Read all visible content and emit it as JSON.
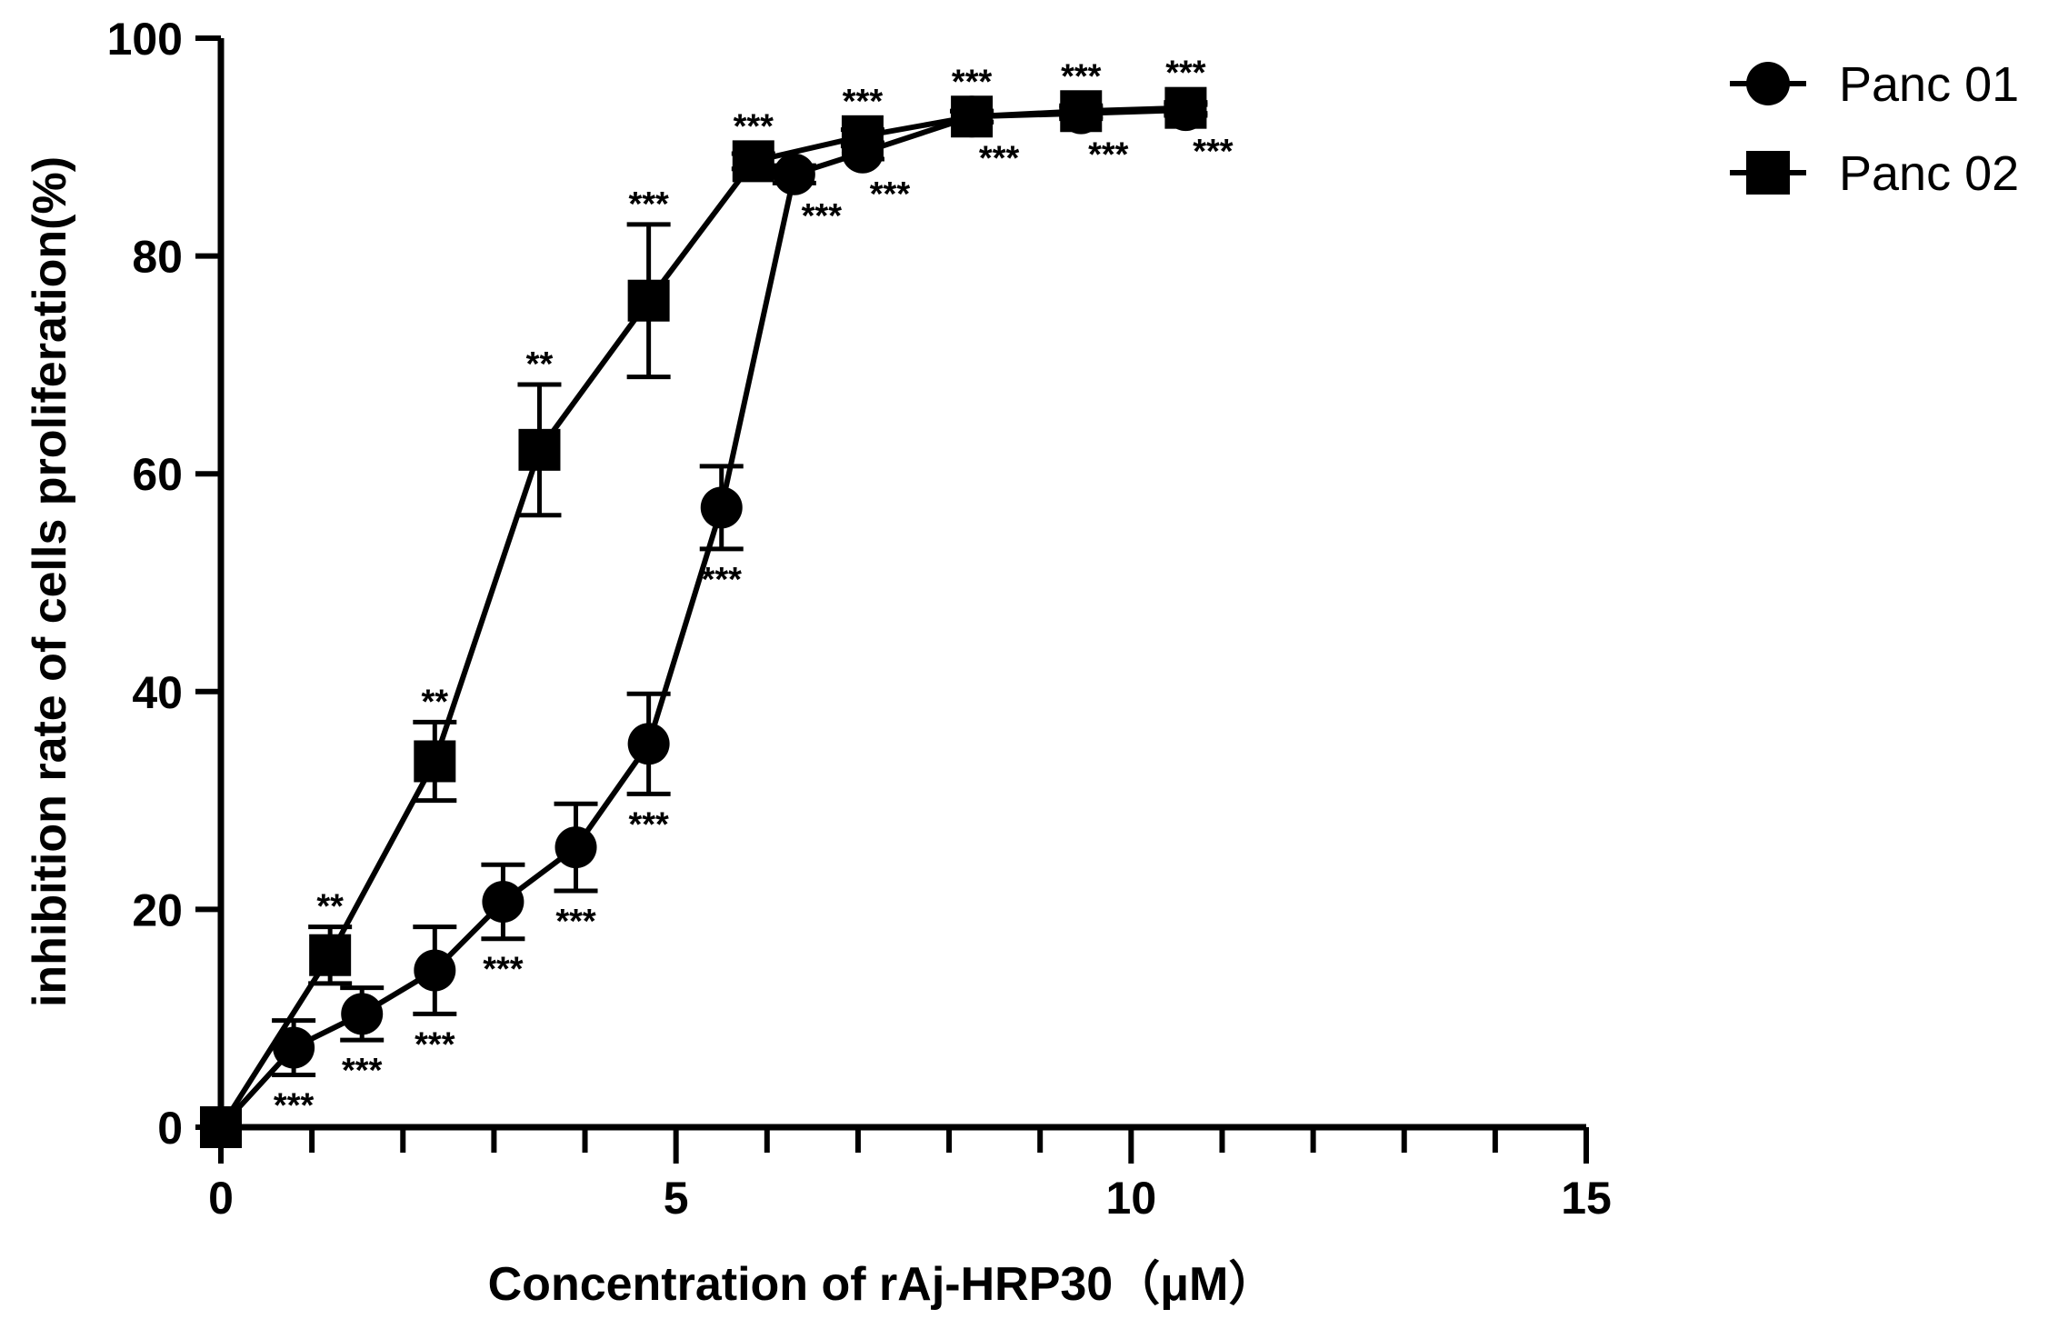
{
  "chart_data": {
    "type": "line",
    "title": "",
    "xlabel": "Concentration of rAj-HRP30（μM）",
    "ylabel": "inhibition rate of cells proliferation(%)",
    "xlim": [
      0,
      15
    ],
    "ylim": [
      0,
      100
    ],
    "x_ticks": [
      0,
      5,
      10,
      15
    ],
    "x_tick_labels": [
      "0",
      "5",
      "10",
      "15"
    ],
    "y_ticks": [
      0,
      20,
      40,
      60,
      80,
      100
    ],
    "y_tick_labels": [
      "0",
      "20",
      "40",
      "60",
      "80",
      "100"
    ],
    "x_minor_step": 1,
    "grid": false,
    "legend_position": "top-right",
    "series": [
      {
        "name": "Panc 01",
        "marker": "circle",
        "color": "#000000",
        "points": [
          {
            "x": 0.0,
            "y": 0.0,
            "err": 0.0,
            "sig": "",
            "sig_pos": "below"
          },
          {
            "x": 0.8,
            "y": 7.3,
            "err": 2.5,
            "sig": "***",
            "sig_pos": "below"
          },
          {
            "x": 1.55,
            "y": 10.4,
            "err": 2.4,
            "sig": "***",
            "sig_pos": "below"
          },
          {
            "x": 2.35,
            "y": 14.4,
            "err": 4.0,
            "sig": "***",
            "sig_pos": "below"
          },
          {
            "x": 3.1,
            "y": 20.7,
            "err": 3.4,
            "sig": "***",
            "sig_pos": "below"
          },
          {
            "x": 3.9,
            "y": 25.7,
            "err": 4.0,
            "sig": "***",
            "sig_pos": "below"
          },
          {
            "x": 4.7,
            "y": 35.2,
            "err": 4.6,
            "sig": "***",
            "sig_pos": "below"
          },
          {
            "x": 5.5,
            "y": 56.9,
            "err": 3.8,
            "sig": "***",
            "sig_pos": "below"
          },
          {
            "x": 6.3,
            "y": 87.5,
            "err": 0.8,
            "sig": "***",
            "sig_pos": "below"
          },
          {
            "x": 7.05,
            "y": 89.5,
            "err": 0.6,
            "sig": "***",
            "sig_pos": "below"
          },
          {
            "x": 8.25,
            "y": 92.8,
            "err": 0.5,
            "sig": "***",
            "sig_pos": "below"
          },
          {
            "x": 9.45,
            "y": 93.1,
            "err": 0.5,
            "sig": "***",
            "sig_pos": "below"
          },
          {
            "x": 10.6,
            "y": 93.4,
            "err": 0.5,
            "sig": "***",
            "sig_pos": "below"
          }
        ]
      },
      {
        "name": "Panc 02",
        "marker": "square",
        "color": "#000000",
        "points": [
          {
            "x": 0.0,
            "y": 0.0,
            "err": 0.0,
            "sig": "",
            "sig_pos": "above"
          },
          {
            "x": 1.2,
            "y": 15.8,
            "err": 2.6,
            "sig": "**",
            "sig_pos": "above"
          },
          {
            "x": 2.35,
            "y": 33.6,
            "err": 3.6,
            "sig": "**",
            "sig_pos": "above"
          },
          {
            "x": 3.5,
            "y": 62.2,
            "err": 6.0,
            "sig": "**",
            "sig_pos": "above"
          },
          {
            "x": 4.7,
            "y": 75.9,
            "err": 7.0,
            "sig": "***",
            "sig_pos": "above"
          },
          {
            "x": 5.85,
            "y": 88.7,
            "err": 0.7,
            "sig": "***",
            "sig_pos": "above"
          },
          {
            "x": 7.05,
            "y": 91.0,
            "err": 0.6,
            "sig": "***",
            "sig_pos": "above"
          },
          {
            "x": 8.25,
            "y": 92.8,
            "err": 0.5,
            "sig": "***",
            "sig_pos": "above"
          },
          {
            "x": 9.45,
            "y": 93.3,
            "err": 0.5,
            "sig": "***",
            "sig_pos": "above"
          },
          {
            "x": 10.6,
            "y": 93.6,
            "err": 0.5,
            "sig": "***",
            "sig_pos": "above"
          }
        ]
      }
    ]
  }
}
